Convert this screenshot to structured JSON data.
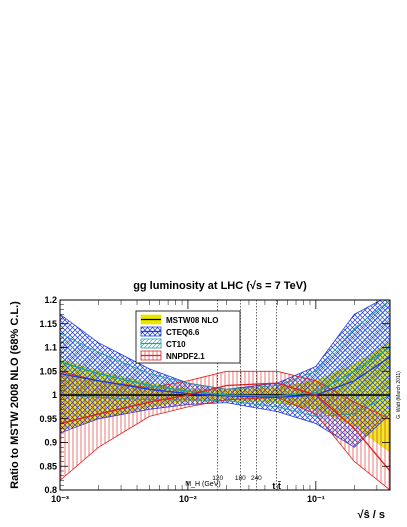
{
  "chart_data": {
    "type": "line",
    "title": "gg luminosity at LHC (√s = 7 TeV)",
    "ylabel": "Ratio to MSTW 2008 NLO (68% C.L.)",
    "xlabel": "√ŝ / s",
    "xscale": "log",
    "xlim": [
      0.001,
      0.38
    ],
    "ylim": [
      0.8,
      1.2
    ],
    "yticks": [
      "0.8",
      "0.85",
      "0.9",
      "0.95",
      "1",
      "1.05",
      "1.1",
      "1.15",
      "1.2"
    ],
    "xticks": [
      "10⁻³",
      "10⁻²",
      "10⁻¹"
    ],
    "legend_position": "top-center",
    "markers": [
      {
        "label": "120",
        "x": 0.0171
      },
      {
        "label": "180",
        "x": 0.0257
      },
      {
        "label": "240",
        "x": 0.0343
      },
      {
        "label": "t t̄",
        "x": 0.0494
      }
    ],
    "marker_axis_label": "M_H (GeV)",
    "credit": "G. Watt   (March 2011)",
    "series": [
      {
        "name": "MSTW08 NLO",
        "color": "#e8e600",
        "x": [
          0.001,
          0.002,
          0.005,
          0.01,
          0.02,
          0.05,
          0.1,
          0.2,
          0.38
        ],
        "central": [
          1,
          1,
          1,
          1,
          1,
          1,
          1,
          1,
          1
        ],
        "upper": [
          1.075,
          1.05,
          1.025,
          1.012,
          1.01,
          1.016,
          1.03,
          1.065,
          1.11
        ],
        "lower": [
          0.925,
          0.95,
          0.975,
          0.988,
          0.99,
          0.984,
          0.97,
          0.935,
          0.88
        ]
      },
      {
        "name": "CTEQ6.6",
        "color": "#1e3ce0",
        "x": [
          0.001,
          0.002,
          0.005,
          0.01,
          0.02,
          0.05,
          0.1,
          0.2,
          0.38
        ],
        "central": [
          1.045,
          1.03,
          1.012,
          1.003,
          0.998,
          0.995,
          1.0,
          1.03,
          1.08
        ],
        "upper": [
          1.17,
          1.11,
          1.055,
          1.025,
          1.012,
          1.025,
          1.06,
          1.17,
          1.21
        ],
        "lower": [
          0.92,
          0.95,
          0.97,
          0.98,
          0.984,
          0.965,
          0.94,
          0.89,
          0.96
        ]
      },
      {
        "name": "CT10",
        "color": "#19a3a3",
        "x": [
          0.001,
          0.002,
          0.005,
          0.01,
          0.02,
          0.05,
          0.1,
          0.2,
          0.38
        ],
        "central": [
          1.07,
          1.045,
          1.02,
          1.008,
          1.0,
          0.998,
          1.005,
          1.05,
          1.1
        ],
        "upper": [
          1.13,
          1.09,
          1.045,
          1.025,
          1.012,
          1.02,
          1.05,
          1.14,
          1.2
        ],
        "lower": [
          1.0,
          0.995,
          0.99,
          0.99,
          0.988,
          0.975,
          0.955,
          0.96,
          1.0
        ]
      },
      {
        "name": "NNPDF2.1",
        "color": "#e02020",
        "x": [
          0.001,
          0.002,
          0.005,
          0.01,
          0.02,
          0.05,
          0.1,
          0.2,
          0.38
        ],
        "central": [
          0.94,
          0.96,
          0.985,
          1.0,
          1.02,
          1.025,
          1.0,
          0.93,
          0.84
        ],
        "upper": [
          1.05,
          1.03,
          1.015,
          1.03,
          1.05,
          1.05,
          1.03,
          0.985,
          0.95
        ],
        "lower": [
          0.82,
          0.89,
          0.955,
          0.975,
          0.99,
          0.995,
          0.96,
          0.86,
          0.8
        ]
      }
    ]
  }
}
